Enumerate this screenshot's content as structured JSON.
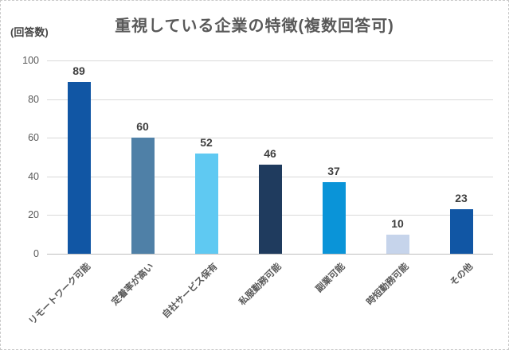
{
  "chart": {
    "title": "重視している企業の特徴(複数回答可)",
    "unit_label": "(回答数)"
  },
  "chart_data": {
    "type": "bar",
    "title": "重視している企業の特徴(複数回答可)",
    "ylabel": "(回答数)",
    "xlabel": "",
    "categories": [
      "リモートワーク可能",
      "定着率が高い",
      "自社サービス保有",
      "私服勤務可能",
      "副業可能",
      "時短勤務可能",
      "その他"
    ],
    "values": [
      89,
      60,
      52,
      46,
      37,
      10,
      23
    ],
    "bar_colors": [
      "#1156A4",
      "#4F80A7",
      "#5FC9F2",
      "#1F3B5E",
      "#0A94D8",
      "#C6D4EB",
      "#1156A4"
    ],
    "ylim": [
      0,
      100
    ],
    "yticks": [
      0,
      20,
      40,
      60,
      80,
      100
    ],
    "grid": true,
    "legend": "none",
    "value_labels_shown": true,
    "category_label_rotation_deg": 45,
    "colors": {
      "title_text": "#595959",
      "tick_text": "#595959",
      "value_label_text": "#3f3f3f",
      "gridline": "#d9d9d9",
      "axis_line": "#bfbfbf",
      "background": "#ffffff"
    }
  }
}
